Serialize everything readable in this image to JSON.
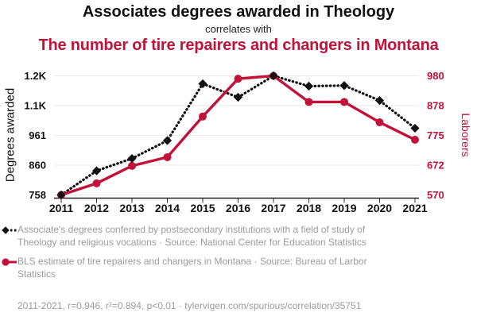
{
  "header": {
    "title1": "Associates degrees awarded in Theology",
    "connector": "correlates with",
    "title2": "The number of tire repairers and changers in Montana"
  },
  "colors": {
    "black_series": "#111111",
    "red_series": "#c1123a",
    "legend_text": "#9b9b9b",
    "gridline": "#eaeaea",
    "axis": "#222222"
  },
  "chart_data": {
    "type": "line",
    "x": [
      "2011",
      "2012",
      "2013",
      "2014",
      "2015",
      "2016",
      "2017",
      "2018",
      "2019",
      "2020",
      "2021"
    ],
    "left_axis": {
      "label": "Degrees awarded",
      "min": 758,
      "max": 1163,
      "tick_labels": [
        "758",
        "860",
        "961",
        "1.1K",
        "1.2K"
      ]
    },
    "right_axis": {
      "label": "Laborers",
      "min": 570,
      "max": 980,
      "tick_labels": [
        "570",
        "672",
        "775",
        "878",
        "980"
      ]
    },
    "series": [
      {
        "name": "Associate's degrees conferred in Theology and religious vocations",
        "axis": "left",
        "color": "#111111",
        "line_style": "dotted",
        "marker": "diamond",
        "values": [
          758,
          840,
          882,
          943,
          1136,
          1090,
          1163,
          1128,
          1130,
          1079,
          985
        ]
      },
      {
        "name": "BLS estimate of tire repairers and changers in Montana",
        "axis": "right",
        "color": "#c1123a",
        "line_style": "solid",
        "marker": "circle",
        "values": [
          570,
          610,
          670,
          700,
          840,
          970,
          980,
          890,
          890,
          820,
          760
        ]
      }
    ],
    "grid": true,
    "legend_position": "bottom"
  },
  "legend": {
    "items": [
      {
        "marker": "black-diamond-dotted",
        "text": "Associate's degrees conferred by postsecondary institutions with a field of study of Theology and religious vocations · Source: National Center for Education Statistics"
      },
      {
        "marker": "red-circle-solid",
        "text": "BLS estimate of tire repairers and changers in Montana · Source: Bureau of Larbor Statistics"
      }
    ]
  },
  "footer": {
    "text": "2011-2021, r=0.946, r²=0.894, p<0.01 · tylervigen.com/spurious/correlation/35751"
  }
}
